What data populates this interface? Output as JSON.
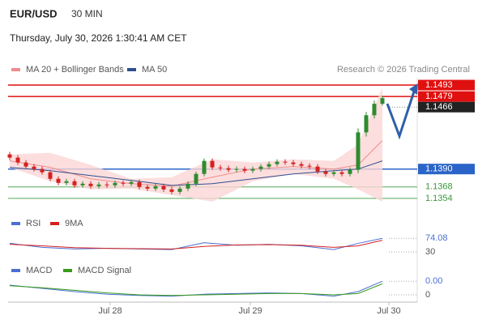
{
  "header": {
    "symbol": "EUR/USD",
    "interval": "30 MIN",
    "datetime": "Thursday, July 30, 2026 1:30:41 AM CET",
    "source": "Research © 2026 Trading Central"
  },
  "chart_data": [
    {
      "type": "candlestick",
      "x": [
        0,
        1,
        2,
        3,
        4,
        5,
        6,
        7,
        8,
        9,
        10,
        11,
        12,
        13,
        14,
        15,
        16,
        17,
        18,
        19,
        20,
        21,
        22,
        23,
        24,
        25,
        26,
        27,
        28,
        29,
        30,
        31,
        32,
        33,
        34,
        35,
        36,
        37,
        38,
        39,
        40,
        41,
        42,
        43,
        44,
        45,
        46
      ],
      "open": [
        1.1408,
        1.1404,
        1.1398,
        1.1393,
        1.139,
        1.1386,
        1.1378,
        1.1373,
        1.1375,
        1.137,
        1.1372,
        1.1369,
        1.1371,
        1.137,
        1.1373,
        1.1372,
        1.1374,
        1.1368,
        1.1366,
        1.1369,
        1.1365,
        1.1362,
        1.1366,
        1.1372,
        1.1384,
        1.14,
        1.1392,
        1.1391,
        1.1389,
        1.139,
        1.1388,
        1.139,
        1.1393,
        1.1396,
        1.1399,
        1.1398,
        1.1396,
        1.1394,
        1.1393,
        1.1387,
        1.1384,
        1.1386,
        1.1384,
        1.1389,
        1.1435,
        1.1456,
        1.147
      ],
      "high": [
        1.1411,
        1.1407,
        1.1401,
        1.1396,
        1.1393,
        1.1389,
        1.1381,
        1.1378,
        1.1378,
        1.1375,
        1.1375,
        1.1374,
        1.1374,
        1.1376,
        1.1376,
        1.1377,
        1.1377,
        1.1371,
        1.1372,
        1.1372,
        1.1368,
        1.1369,
        1.1375,
        1.1387,
        1.1403,
        1.1403,
        1.1395,
        1.1394,
        1.1393,
        1.1393,
        1.1393,
        1.1396,
        1.1399,
        1.1402,
        1.1402,
        1.1401,
        1.1399,
        1.1397,
        1.1396,
        1.139,
        1.1389,
        1.1389,
        1.1392,
        1.144,
        1.146,
        1.1474,
        1.148
      ],
      "low": [
        1.1401,
        1.1395,
        1.139,
        1.1387,
        1.1383,
        1.1375,
        1.137,
        1.137,
        1.1367,
        1.1367,
        1.1366,
        1.1366,
        1.1367,
        1.1367,
        1.1369,
        1.1369,
        1.1365,
        1.1363,
        1.1363,
        1.1362,
        1.1359,
        1.1359,
        1.1363,
        1.1369,
        1.1381,
        1.1389,
        1.1388,
        1.1386,
        1.1386,
        1.1385,
        1.1385,
        1.1387,
        1.139,
        1.1393,
        1.1395,
        1.1393,
        1.1391,
        1.139,
        1.1384,
        1.1381,
        1.1381,
        1.1381,
        1.1381,
        1.1385,
        1.143,
        1.1452,
        1.1468
      ],
      "close": [
        1.1404,
        1.1398,
        1.1393,
        1.139,
        1.1386,
        1.1378,
        1.1373,
        1.1375,
        1.137,
        1.1372,
        1.1369,
        1.1371,
        1.137,
        1.1373,
        1.1372,
        1.1374,
        1.1368,
        1.1366,
        1.1369,
        1.1365,
        1.1362,
        1.1366,
        1.1372,
        1.1384,
        1.14,
        1.1392,
        1.1391,
        1.1389,
        1.139,
        1.1388,
        1.139,
        1.1393,
        1.1396,
        1.1399,
        1.1398,
        1.1396,
        1.1394,
        1.1393,
        1.1387,
        1.1384,
        1.1386,
        1.1384,
        1.1389,
        1.1435,
        1.1456,
        1.147,
        1.1477
      ],
      "up_color": "#2e8b2e",
      "down_color": "#d42020",
      "overlays": [
        {
          "name": "MA 20 + Bollinger Bands",
          "color": "#f08c8c",
          "band_color": "#fbd6d6",
          "x": [
            0,
            5,
            10,
            15,
            20,
            25,
            30,
            35,
            40,
            43,
            46
          ],
          "values": [
            1.14,
            1.1392,
            1.1378,
            1.1372,
            1.1369,
            1.138,
            1.139,
            1.1393,
            1.139,
            1.1395,
            1.1425
          ],
          "upper": [
            1.1408,
            1.141,
            1.1395,
            1.1378,
            1.138,
            1.1402,
            1.1398,
            1.1402,
            1.14,
            1.142,
            1.149
          ],
          "lower": [
            1.1392,
            1.1375,
            1.1365,
            1.1366,
            1.1358,
            1.135,
            1.1375,
            1.1384,
            1.1378,
            1.1365,
            1.135
          ]
        },
        {
          "name": "MA 50",
          "color": "#2f4f8f",
          "x": [
            0,
            5,
            10,
            15,
            20,
            25,
            30,
            35,
            40,
            43,
            46
          ],
          "values": [
            1.1392,
            1.1388,
            1.1382,
            1.1376,
            1.137,
            1.1372,
            1.1378,
            1.1384,
            1.1388,
            1.139,
            1.14
          ]
        }
      ],
      "levels": [
        {
          "value": 1.1493,
          "label": "1.1493",
          "color": "#e01010",
          "line": "solid",
          "box": true
        },
        {
          "value": 1.1479,
          "label": "1.1479",
          "color": "#e01010",
          "line": "solid",
          "box": true
        },
        {
          "value": 1.1466,
          "label": "1.1466",
          "color": "#222222",
          "line": "dotted",
          "box": true
        },
        {
          "value": 1.139,
          "label": "1.1390",
          "color": "#2a64c8",
          "line": "solid",
          "box": true
        },
        {
          "value": 1.1368,
          "label": "1.1368",
          "color": "#3a9a3a",
          "line": "solid",
          "box": false
        },
        {
          "value": 1.1354,
          "label": "1.1354",
          "color": "#3a9a3a",
          "line": "solid",
          "box": false
        }
      ],
      "xlim": [
        -0.2,
        50.3
      ],
      "ylim": [
        1.134,
        1.15
      ],
      "xticks": [
        {
          "value": 12.4,
          "label": "Jul 28"
        },
        {
          "value": 29.7,
          "label": "Jul 29"
        },
        {
          "value": 46.8,
          "label": "Jul 30"
        }
      ]
    },
    {
      "type": "line",
      "series": [
        {
          "name": "RSI",
          "color": "#4a6fd4",
          "x": [
            0,
            4,
            8,
            12,
            16,
            20,
            24,
            28,
            32,
            36,
            40,
            43,
            46
          ],
          "values": [
            58,
            45,
            40,
            42,
            40,
            38,
            60,
            52,
            55,
            50,
            38,
            58,
            74.08
          ]
        },
        {
          "name": "9MA",
          "color": "#d42020",
          "x": [
            0,
            4,
            8,
            12,
            16,
            20,
            24,
            28,
            32,
            36,
            40,
            43,
            46
          ],
          "values": [
            55,
            50,
            44,
            42,
            41,
            40,
            48,
            53,
            54,
            52,
            45,
            50,
            68
          ]
        }
      ],
      "ylim": [
        20,
        80
      ],
      "yticks": [
        30
      ]
    },
    {
      "type": "line",
      "series": [
        {
          "name": "MACD",
          "color": "#4a6fd4",
          "x": [
            0,
            4,
            8,
            12,
            16,
            20,
            24,
            28,
            32,
            36,
            40,
            43,
            46
          ],
          "values": [
            0.0015,
            0.001,
            0.0005,
            0.0001,
            -0.0001,
            -0.0002,
            0.0001,
            0.0002,
            0.0003,
            0.0002,
            -0.0002,
            0.0005,
            0.0021
          ],
          "value_labels": [
            null,
            null,
            null,
            null,
            null,
            null,
            null,
            null,
            null,
            null,
            null,
            null,
            "0.00"
          ]
        },
        {
          "name": "MACD Signal",
          "color": "#3a9a1a",
          "x": [
            0,
            4,
            8,
            12,
            16,
            20,
            24,
            28,
            32,
            36,
            40,
            43,
            46
          ],
          "values": [
            0.0014,
            0.0011,
            0.0007,
            0.0003,
            0.0,
            -0.0001,
            0.0,
            0.0001,
            0.0002,
            0.0002,
            0.0,
            0.0002,
            0.0017
          ]
        }
      ],
      "ylim": [
        -0.001,
        0.003
      ],
      "yticks": [
        0
      ]
    }
  ]
}
